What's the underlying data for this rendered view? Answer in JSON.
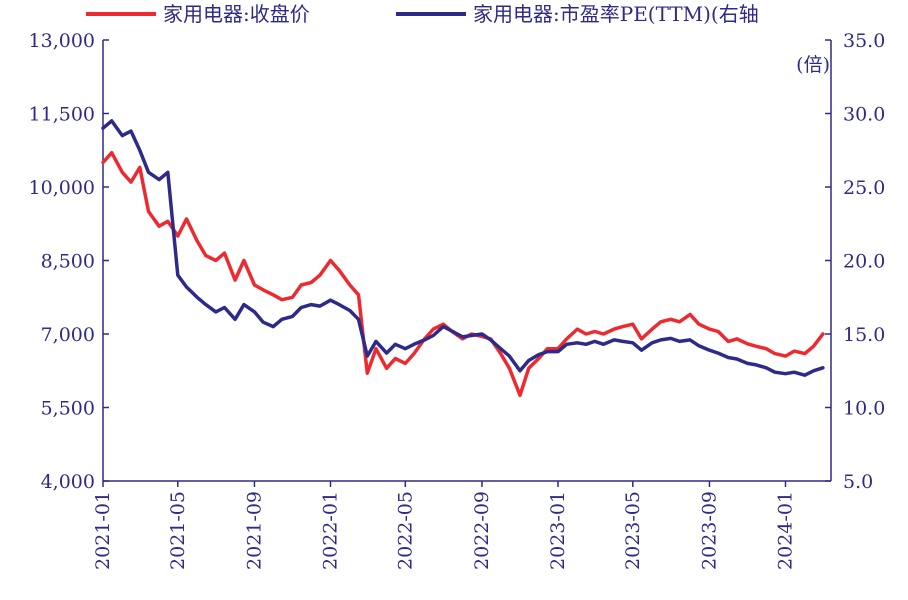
{
  "chart_data": {
    "type": "line",
    "legend": [
      {
        "label": "家用电器:收盘价",
        "color": "#ee2a30"
      },
      {
        "label": "家用电器:市盈率PE(TTM)(右轴",
        "color": "#2e2a8a"
      }
    ],
    "right_unit": "(倍)",
    "x_ticks": [
      "2021-01",
      "2021-05",
      "2021-09",
      "2022-01",
      "2022-05",
      "2022-09",
      "2023-01",
      "2023-05",
      "2023-09",
      "2024-01"
    ],
    "y_left": {
      "ticks": [
        "4,000",
        "5,500",
        "7,000",
        "8,500",
        "10,000",
        "11,500",
        "13,000"
      ],
      "range": [
        4000,
        13000
      ]
    },
    "y_right": {
      "ticks": [
        "5.0",
        "10.0",
        "15.0",
        "20.0",
        "25.0",
        "30.0",
        "35.0"
      ],
      "range": [
        5,
        35
      ]
    },
    "colors": {
      "axis": "#2e2a8a",
      "price": "#ee2a30",
      "pe": "#2e2a8a"
    },
    "series": [
      {
        "name": "家用电器:收盘价",
        "axis": "left",
        "x": [
          "2021-01",
          "2021-01-15",
          "2021-02",
          "2021-02-15",
          "2021-03",
          "2021-03-15",
          "2021-04",
          "2021-04-15",
          "2021-05",
          "2021-05-15",
          "2021-06",
          "2021-06-15",
          "2021-07",
          "2021-07-15",
          "2021-08",
          "2021-08-15",
          "2021-09",
          "2021-09-15",
          "2021-10",
          "2021-10-15",
          "2021-11",
          "2021-11-15",
          "2021-12",
          "2021-12-15",
          "2022-01",
          "2022-01-15",
          "2022-02",
          "2022-02-15",
          "2022-03",
          "2022-03-15",
          "2022-04",
          "2022-04-15",
          "2022-05",
          "2022-05-15",
          "2022-06",
          "2022-06-15",
          "2022-07",
          "2022-07-15",
          "2022-08",
          "2022-08-15",
          "2022-09",
          "2022-09-15",
          "2022-10",
          "2022-10-15",
          "2022-11",
          "2022-11-15",
          "2022-12",
          "2022-12-15",
          "2023-01",
          "2023-01-15",
          "2023-02",
          "2023-02-15",
          "2023-03",
          "2023-03-15",
          "2023-04",
          "2023-04-15",
          "2023-05",
          "2023-05-15",
          "2023-06",
          "2023-06-15",
          "2023-07",
          "2023-07-15",
          "2023-08",
          "2023-08-15",
          "2023-09",
          "2023-09-15",
          "2023-10",
          "2023-10-15",
          "2023-11",
          "2023-11-15",
          "2023-12",
          "2023-12-15",
          "2024-01",
          "2024-01-15",
          "2024-02",
          "2024-02-15",
          "2024-03"
        ],
        "values": [
          10500,
          10700,
          10300,
          10100,
          10400,
          9500,
          9200,
          9300,
          9000,
          9350,
          8900,
          8600,
          8500,
          8650,
          8100,
          8500,
          8000,
          7900,
          7800,
          7700,
          7750,
          8000,
          8050,
          8200,
          8500,
          8300,
          8000,
          7800,
          6200,
          6700,
          6300,
          6500,
          6400,
          6600,
          6900,
          7100,
          7200,
          7050,
          6900,
          7000,
          6950,
          6900,
          6600,
          6300,
          5750,
          6300,
          6500,
          6700,
          6700,
          6900,
          7100,
          7000,
          7050,
          7000,
          7100,
          7150,
          7200,
          6900,
          7100,
          7250,
          7300,
          7250,
          7400,
          7200,
          7100,
          7050,
          6850,
          6900,
          6800,
          6750,
          6700,
          6600,
          6550,
          6650,
          6600,
          6750,
          7000
        ]
      },
      {
        "name": "家用电器:市盈率PE(TTM)(右轴",
        "axis": "right",
        "x": [
          "2021-01",
          "2021-01-15",
          "2021-02",
          "2021-02-15",
          "2021-03",
          "2021-03-15",
          "2021-04",
          "2021-04-15",
          "2021-05",
          "2021-05-15",
          "2021-06",
          "2021-06-15",
          "2021-07",
          "2021-07-15",
          "2021-08",
          "2021-08-15",
          "2021-09",
          "2021-09-15",
          "2021-10",
          "2021-10-15",
          "2021-11",
          "2021-11-15",
          "2021-12",
          "2021-12-15",
          "2022-01",
          "2022-01-15",
          "2022-02",
          "2022-02-15",
          "2022-03",
          "2022-03-15",
          "2022-04",
          "2022-04-15",
          "2022-05",
          "2022-05-15",
          "2022-06",
          "2022-06-15",
          "2022-07",
          "2022-07-15",
          "2022-08",
          "2022-08-15",
          "2022-09",
          "2022-09-15",
          "2022-10",
          "2022-10-15",
          "2022-11",
          "2022-11-15",
          "2022-12",
          "2022-12-15",
          "2023-01",
          "2023-01-15",
          "2023-02",
          "2023-02-15",
          "2023-03",
          "2023-03-15",
          "2023-04",
          "2023-04-15",
          "2023-05",
          "2023-05-15",
          "2023-06",
          "2023-06-15",
          "2023-07",
          "2023-07-15",
          "2023-08",
          "2023-08-15",
          "2023-09",
          "2023-09-15",
          "2023-10",
          "2023-10-15",
          "2023-11",
          "2023-11-15",
          "2023-12",
          "2023-12-15",
          "2024-01",
          "2024-01-15",
          "2024-02",
          "2024-02-15",
          "2024-03"
        ],
        "values": [
          29.0,
          29.5,
          28.5,
          28.8,
          27.5,
          26.0,
          25.5,
          26.0,
          19.0,
          18.2,
          17.5,
          17.0,
          16.5,
          16.8,
          16.0,
          17.0,
          16.5,
          15.8,
          15.5,
          16.0,
          16.2,
          16.8,
          17.0,
          16.9,
          17.3,
          17.0,
          16.6,
          16.0,
          13.5,
          14.5,
          13.7,
          14.3,
          14.0,
          14.3,
          14.6,
          14.9,
          15.5,
          15.2,
          14.8,
          14.9,
          15.0,
          14.6,
          14.0,
          13.5,
          12.5,
          13.2,
          13.6,
          13.8,
          13.8,
          14.3,
          14.4,
          14.3,
          14.5,
          14.3,
          14.6,
          14.5,
          14.4,
          13.9,
          14.4,
          14.6,
          14.7,
          14.5,
          14.6,
          14.2,
          13.9,
          13.7,
          13.4,
          13.3,
          13.0,
          12.9,
          12.7,
          12.4,
          12.3,
          12.4,
          12.2,
          12.5,
          12.7
        ]
      }
    ]
  }
}
